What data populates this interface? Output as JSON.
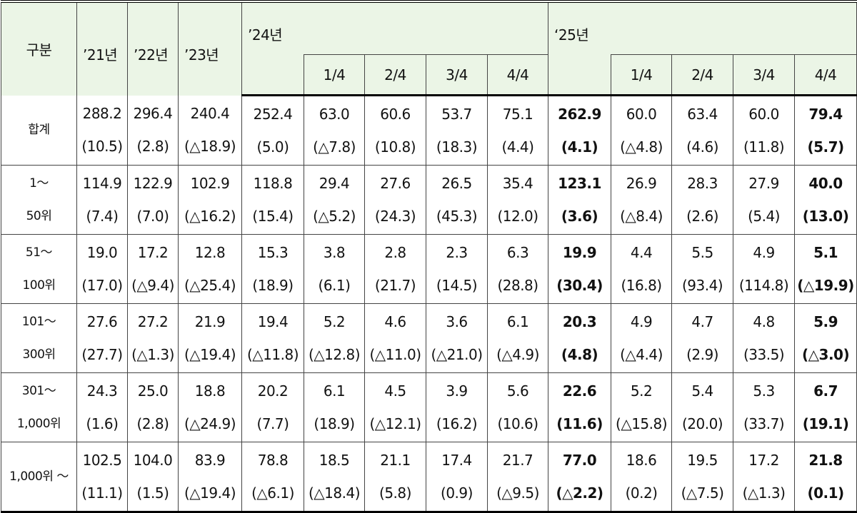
{
  "table": {
    "header": {
      "group": "구분",
      "years": [
        "’21년",
        "’22년",
        "’23년",
        "’24년",
        "‘25년"
      ],
      "quarters_2024": [
        "1/4",
        "2/4",
        "3/4",
        "4/4"
      ],
      "quarters_2025": [
        "1/4",
        "2/4",
        "3/4",
        "4/4"
      ]
    },
    "rows": [
      {
        "label": [
          "합계"
        ],
        "values": [
          "288.2",
          "296.4",
          "240.4",
          "252.4",
          "63.0",
          "60.6",
          "53.7",
          "75.1",
          "262.9",
          "60.0",
          "63.4",
          "60.0",
          "79.4"
        ],
        "changes": [
          "(10.5)",
          "(2.8)",
          "(△18.9)",
          "(5.0)",
          "(△7.8)",
          "(10.8)",
          "(18.3)",
          "(4.4)",
          "(4.1)",
          "(△4.8)",
          "(4.6)",
          "(11.8)",
          "(5.7)"
        ]
      },
      {
        "label": [
          "1～",
          "50위"
        ],
        "values": [
          "114.9",
          "122.9",
          "102.9",
          "118.8",
          "29.4",
          "27.6",
          "26.5",
          "35.4",
          "123.1",
          "26.9",
          "28.3",
          "27.9",
          "40.0"
        ],
        "changes": [
          "(7.4)",
          "(7.0)",
          "(△16.2)",
          "(15.4)",
          "(△5.2)",
          "(24.3)",
          "(45.3)",
          "(12.0)",
          "(3.6)",
          "(△8.4)",
          "(2.6)",
          "(5.4)",
          "(13.0)"
        ]
      },
      {
        "label": [
          "51～",
          "100위"
        ],
        "values": [
          "19.0",
          "17.2",
          "12.8",
          "15.3",
          "3.8",
          "2.8",
          "2.3",
          "6.3",
          "19.9",
          "4.4",
          "5.5",
          "4.9",
          "5.1"
        ],
        "changes": [
          "(17.0)",
          "(△9.4)",
          "(△25.4)",
          "(18.9)",
          "(6.1)",
          "(21.7)",
          "(14.5)",
          "(28.8)",
          "(30.4)",
          "(16.8)",
          "(93.4)",
          "(114.8)",
          "(△19.9)"
        ]
      },
      {
        "label": [
          "101～",
          "300위"
        ],
        "values": [
          "27.6",
          "27.2",
          "21.9",
          "19.4",
          "5.2",
          "4.6",
          "3.6",
          "6.1",
          "20.3",
          "4.9",
          "4.7",
          "4.8",
          "5.9"
        ],
        "changes": [
          "(27.7)",
          "(△1.3)",
          "(△19.4)",
          "(△11.8)",
          "(△12.8)",
          "(△11.0)",
          "(△21.0)",
          "(△4.9)",
          "(4.8)",
          "(△4.4)",
          "(2.9)",
          "(33.5)",
          "(△3.0)"
        ]
      },
      {
        "label": [
          "301～",
          "1,000위"
        ],
        "values": [
          "24.3",
          "25.0",
          "18.8",
          "20.2",
          "6.1",
          "4.5",
          "3.9",
          "5.6",
          "22.6",
          "5.2",
          "5.4",
          "5.3",
          "6.7"
        ],
        "changes": [
          "(1.6)",
          "(2.8)",
          "(△24.9)",
          "(7.7)",
          "(18.9)",
          "(△12.1)",
          "(16.2)",
          "(10.6)",
          "(11.6)",
          "(△15.8)",
          "(20.0)",
          "(33.7)",
          "(19.1)"
        ]
      },
      {
        "label": [
          "1,000위 ～"
        ],
        "values": [
          "102.5",
          "104.0",
          "83.9",
          "78.8",
          "18.5",
          "21.1",
          "17.4",
          "21.7",
          "77.0",
          "18.6",
          "19.5",
          "17.2",
          "21.8"
        ],
        "changes": [
          "(11.1)",
          "(1.5)",
          "(△19.4)",
          "(△6.1)",
          "(△18.4)",
          "(5.8)",
          "(0.9)",
          "(△9.5)",
          "(△2.2)",
          "(0.2)",
          "(△7.5)",
          "(△1.3)",
          "(0.1)"
        ]
      }
    ]
  }
}
